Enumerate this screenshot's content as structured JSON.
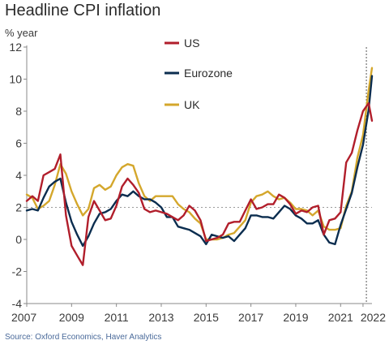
{
  "chart_data": {
    "type": "line",
    "title": "Headline CPI inflation",
    "ylabel": "% year",
    "xlabel": "",
    "source": "Source: Oxford Economics, Haver Analytics",
    "ylim": [
      -4,
      12
    ],
    "xlim": [
      2007,
      2022.4
    ],
    "yticks": [
      "12",
      "10",
      "8",
      "6",
      "4",
      "2",
      "0",
      "-2",
      "-4"
    ],
    "xticks": [
      "2007",
      "2009",
      "2011",
      "2013",
      "2015",
      "2017",
      "2019",
      "2021",
      "2022"
    ],
    "reference_line_y": 2,
    "vertical_marker_x": 2022.15,
    "legend_position": "top-center",
    "series": [
      {
        "name": "US",
        "color": "#b11e2b",
        "x": [
          2007.0,
          2007.25,
          2007.5,
          2007.75,
          2008.0,
          2008.25,
          2008.5,
          2008.75,
          2009.0,
          2009.25,
          2009.5,
          2009.75,
          2010.0,
          2010.25,
          2010.5,
          2010.75,
          2011.0,
          2011.25,
          2011.5,
          2011.75,
          2012.0,
          2012.25,
          2012.5,
          2012.75,
          2013.0,
          2013.25,
          2013.5,
          2013.75,
          2014.0,
          2014.25,
          2014.5,
          2014.75,
          2015.0,
          2015.25,
          2015.5,
          2015.75,
          2016.0,
          2016.25,
          2016.5,
          2016.75,
          2017.0,
          2017.25,
          2017.5,
          2017.75,
          2018.0,
          2018.25,
          2018.5,
          2018.75,
          2019.0,
          2019.25,
          2019.5,
          2019.75,
          2020.0,
          2020.25,
          2020.5,
          2020.75,
          2021.0,
          2021.25,
          2021.5,
          2021.75,
          2022.0,
          2022.25,
          2022.4
        ],
        "values": [
          2.4,
          2.7,
          2.4,
          4.0,
          4.2,
          4.4,
          5.3,
          1.5,
          -0.4,
          -1.0,
          -1.6,
          1.4,
          2.4,
          1.8,
          1.2,
          1.3,
          2.1,
          3.3,
          3.8,
          3.4,
          2.9,
          1.9,
          1.7,
          1.8,
          1.7,
          1.6,
          1.4,
          1.2,
          1.5,
          2.1,
          1.8,
          1.2,
          -0.1,
          0.0,
          0.1,
          0.3,
          1.0,
          1.1,
          1.1,
          1.8,
          2.5,
          1.9,
          2.0,
          2.2,
          2.2,
          2.8,
          2.6,
          2.2,
          1.6,
          1.8,
          1.7,
          2.0,
          2.1,
          0.3,
          1.2,
          1.3,
          1.7,
          4.8,
          5.4,
          6.8,
          8.0,
          8.5,
          7.4
        ]
      },
      {
        "name": "Eurozone",
        "color": "#0b2d4f",
        "x": [
          2007.0,
          2007.25,
          2007.5,
          2007.75,
          2008.0,
          2008.25,
          2008.5,
          2008.75,
          2009.0,
          2009.25,
          2009.5,
          2009.75,
          2010.0,
          2010.25,
          2010.5,
          2010.75,
          2011.0,
          2011.25,
          2011.5,
          2011.75,
          2012.0,
          2012.25,
          2012.5,
          2012.75,
          2013.0,
          2013.25,
          2013.5,
          2013.75,
          2014.0,
          2014.25,
          2014.5,
          2014.75,
          2015.0,
          2015.25,
          2015.5,
          2015.75,
          2016.0,
          2016.25,
          2016.5,
          2016.75,
          2017.0,
          2017.25,
          2017.5,
          2017.75,
          2018.0,
          2018.25,
          2018.5,
          2018.75,
          2019.0,
          2019.25,
          2019.5,
          2019.75,
          2020.0,
          2020.25,
          2020.5,
          2020.75,
          2021.0,
          2021.25,
          2021.5,
          2021.75,
          2022.0,
          2022.25,
          2022.4
        ],
        "values": [
          1.8,
          1.9,
          1.8,
          2.6,
          3.3,
          3.6,
          3.8,
          2.3,
          1.1,
          0.3,
          -0.4,
          0.2,
          1.0,
          1.6,
          1.7,
          1.9,
          2.4,
          2.8,
          2.7,
          3.0,
          2.7,
          2.5,
          2.5,
          2.3,
          2.0,
          1.4,
          1.4,
          0.8,
          0.7,
          0.6,
          0.4,
          0.2,
          -0.3,
          0.3,
          0.2,
          0.1,
          0.2,
          -0.1,
          0.3,
          0.7,
          1.5,
          1.5,
          1.4,
          1.4,
          1.3,
          1.7,
          2.1,
          1.9,
          1.5,
          1.3,
          1.0,
          1.0,
          1.2,
          0.3,
          -0.2,
          -0.3,
          0.9,
          1.9,
          2.9,
          4.5,
          5.9,
          8.1,
          10.2
        ]
      },
      {
        "name": "UK",
        "color": "#d4a72c",
        "x": [
          2007.0,
          2007.25,
          2007.5,
          2007.75,
          2008.0,
          2008.25,
          2008.5,
          2008.75,
          2009.0,
          2009.25,
          2009.5,
          2009.75,
          2010.0,
          2010.25,
          2010.5,
          2010.75,
          2011.0,
          2011.25,
          2011.5,
          2011.75,
          2012.0,
          2012.25,
          2012.5,
          2012.75,
          2013.0,
          2013.25,
          2013.5,
          2013.75,
          2014.0,
          2014.25,
          2014.5,
          2014.75,
          2015.0,
          2015.25,
          2015.5,
          2015.75,
          2016.0,
          2016.25,
          2016.5,
          2016.75,
          2017.0,
          2017.25,
          2017.5,
          2017.75,
          2018.0,
          2018.25,
          2018.5,
          2018.75,
          2019.0,
          2019.25,
          2019.5,
          2019.75,
          2020.0,
          2020.25,
          2020.5,
          2020.75,
          2021.0,
          2021.25,
          2021.5,
          2021.75,
          2022.0,
          2022.25,
          2022.4
        ],
        "values": [
          2.8,
          2.6,
          1.9,
          2.1,
          2.4,
          3.4,
          4.7,
          4.1,
          3.0,
          2.2,
          1.5,
          1.9,
          3.2,
          3.4,
          3.1,
          3.3,
          4.0,
          4.5,
          4.7,
          4.6,
          3.5,
          2.7,
          2.4,
          2.7,
          2.7,
          2.7,
          2.7,
          2.2,
          1.9,
          1.7,
          1.3,
          1.0,
          0.0,
          0.0,
          0.0,
          0.1,
          0.3,
          0.4,
          0.8,
          1.2,
          2.3,
          2.7,
          2.8,
          3.0,
          2.7,
          2.5,
          2.6,
          2.3,
          1.9,
          1.9,
          1.8,
          1.5,
          1.8,
          0.8,
          0.6,
          0.6,
          0.7,
          2.1,
          3.0,
          5.1,
          6.5,
          9.3,
          10.7
        ]
      }
    ]
  }
}
